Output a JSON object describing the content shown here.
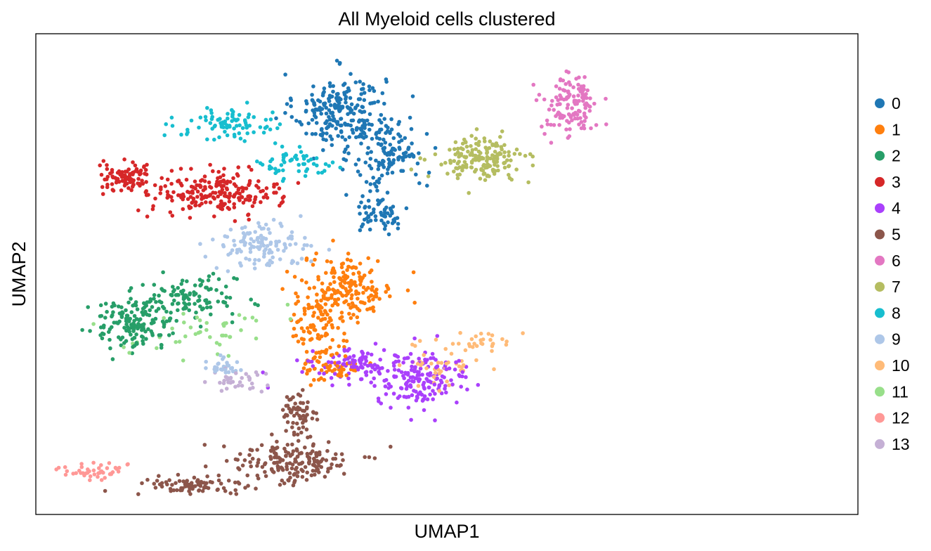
{
  "chart_data": {
    "type": "scatter",
    "title": "All Myeloid cells clustered",
    "xlabel": "UMAP1",
    "ylabel": "UMAP2",
    "xlim": [
      0,
      100
    ],
    "ylim": [
      0,
      100
    ],
    "ticks": "none",
    "grid": false,
    "legend_position": "right",
    "series": [
      {
        "name": "0",
        "color": "#1f77b4",
        "n": 420,
        "blobs": [
          [
            37,
            84,
            5,
            7,
            0.55
          ],
          [
            43,
            75,
            4,
            7,
            0.3
          ],
          [
            42,
            63,
            3,
            4,
            0.15
          ]
        ]
      },
      {
        "name": "1",
        "color": "#ff7f0e",
        "n": 330,
        "blobs": [
          [
            38,
            47,
            5,
            6,
            0.55
          ],
          [
            34,
            40,
            3,
            6,
            0.25
          ],
          [
            36,
            31,
            3,
            3,
            0.2
          ]
        ]
      },
      {
        "name": "2",
        "color": "#279e68",
        "n": 260,
        "blobs": [
          [
            12,
            40,
            5,
            5,
            0.6
          ],
          [
            19,
            45,
            5,
            4,
            0.4
          ]
        ]
      },
      {
        "name": "3",
        "color": "#d62728",
        "n": 300,
        "blobs": [
          [
            22,
            67,
            7,
            4,
            0.7
          ],
          [
            11,
            70,
            3,
            3,
            0.3
          ]
        ]
      },
      {
        "name": "4",
        "color": "#aa40fc",
        "n": 260,
        "blobs": [
          [
            47,
            28,
            5,
            5,
            0.6
          ],
          [
            39,
            31,
            5,
            3,
            0.4
          ]
        ]
      },
      {
        "name": "5",
        "color": "#8c564b",
        "n": 320,
        "blobs": [
          [
            31,
            11,
            7,
            4,
            0.55
          ],
          [
            19,
            6,
            6,
            2,
            0.25
          ],
          [
            32,
            20,
            2,
            5,
            0.2
          ]
        ]
      },
      {
        "name": "6",
        "color": "#e377c2",
        "n": 130,
        "blobs": [
          [
            65,
            85,
            3,
            6,
            1.0
          ]
        ]
      },
      {
        "name": "7",
        "color": "#b5bd61",
        "n": 170,
        "blobs": [
          [
            54,
            74,
            5,
            4,
            1.0
          ]
        ]
      },
      {
        "name": "8",
        "color": "#17becf",
        "n": 140,
        "blobs": [
          [
            24,
            81,
            6,
            3,
            0.6
          ],
          [
            32,
            73,
            4,
            3,
            0.4
          ]
        ]
      },
      {
        "name": "9",
        "color": "#aec7e8",
        "n": 150,
        "blobs": [
          [
            27,
            56,
            5,
            4,
            0.8
          ],
          [
            23,
            31,
            2,
            2,
            0.2
          ]
        ]
      },
      {
        "name": "10",
        "color": "#ffbb78",
        "n": 70,
        "blobs": [
          [
            50,
            31,
            4,
            4,
            0.6
          ],
          [
            54,
            36,
            4,
            2,
            0.4
          ]
        ]
      },
      {
        "name": "11",
        "color": "#98df8a",
        "n": 45,
        "blobs": [
          [
            21,
            38,
            8,
            5,
            1.0
          ]
        ]
      },
      {
        "name": "12",
        "color": "#ff9896",
        "n": 45,
        "blobs": [
          [
            7,
            9,
            4,
            1.5,
            1.0
          ]
        ]
      },
      {
        "name": "13",
        "color": "#c5b0d5",
        "n": 35,
        "blobs": [
          [
            24,
            28,
            3,
            3,
            1.0
          ]
        ]
      }
    ]
  }
}
